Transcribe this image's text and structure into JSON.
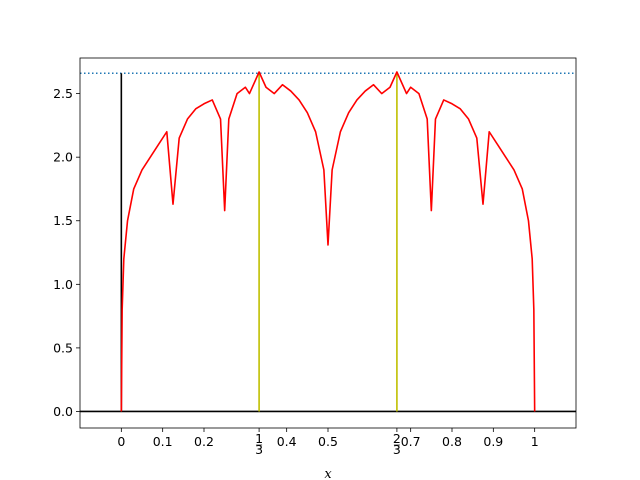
{
  "chart_data": {
    "type": "line",
    "title": "",
    "xlabel": "x",
    "ylabel": "",
    "xlim": [
      -0.1,
      1.1
    ],
    "ylim": [
      -0.13,
      2.78
    ],
    "grid": false,
    "legend": "none",
    "x_ticks": [
      {
        "value": 0,
        "label": "0"
      },
      {
        "value": 0.1,
        "label": "0.1"
      },
      {
        "value": 0.2,
        "label": "0.2"
      },
      {
        "value": 0.3333,
        "label": "1/3",
        "num": "1",
        "den": "3"
      },
      {
        "value": 0.4,
        "label": "0.4"
      },
      {
        "value": 0.5,
        "label": "0.5"
      },
      {
        "value": 0.6667,
        "label": "2/3",
        "num": "2",
        "den": "3"
      },
      {
        "value": 0.7,
        "label": "0.7"
      },
      {
        "value": 0.8,
        "label": "0.8"
      },
      {
        "value": 0.9,
        "label": "0.9"
      },
      {
        "value": 1,
        "label": "1"
      }
    ],
    "y_ticks": [
      {
        "value": 0.0,
        "label": "0.0"
      },
      {
        "value": 0.5,
        "label": "0.5"
      },
      {
        "value": 1.0,
        "label": "1.0"
      },
      {
        "value": 1.5,
        "label": "1.5"
      },
      {
        "value": 2.0,
        "label": "2.0"
      },
      {
        "value": 2.5,
        "label": "2.5"
      }
    ],
    "series": [
      {
        "color": "#ff0000",
        "x": [
          0,
          0.002,
          0.006,
          0.015,
          0.03,
          0.05,
          0.07,
          0.09,
          0.11,
          0.125,
          0.14,
          0.16,
          0.18,
          0.2,
          0.22,
          0.24,
          0.25,
          0.26,
          0.28,
          0.3,
          0.31,
          0.3333,
          0.35,
          0.37,
          0.39,
          0.41,
          0.43,
          0.45,
          0.47,
          0.49,
          0.5,
          0.51,
          0.53,
          0.55,
          0.57,
          0.59,
          0.61,
          0.63,
          0.65,
          0.6667,
          0.69,
          0.7,
          0.72,
          0.74,
          0.75,
          0.76,
          0.78,
          0.8,
          0.82,
          0.84,
          0.86,
          0.875,
          0.89,
          0.91,
          0.93,
          0.95,
          0.97,
          0.985,
          0.994,
          0.998,
          1
        ],
        "y": [
          0,
          0.8,
          1.2,
          1.5,
          1.75,
          1.9,
          2.0,
          2.1,
          2.2,
          1.63,
          2.15,
          2.3,
          2.38,
          2.42,
          2.45,
          2.3,
          1.58,
          2.3,
          2.5,
          2.55,
          2.5,
          2.67,
          2.55,
          2.5,
          2.57,
          2.52,
          2.45,
          2.35,
          2.2,
          1.9,
          1.31,
          1.9,
          2.2,
          2.35,
          2.45,
          2.52,
          2.57,
          2.5,
          2.55,
          2.67,
          2.5,
          2.55,
          2.5,
          2.3,
          1.58,
          2.3,
          2.45,
          2.42,
          2.38,
          2.3,
          2.15,
          1.63,
          2.2,
          2.1,
          2.0,
          1.9,
          1.75,
          1.5,
          1.2,
          0.8,
          0
        ]
      }
    ],
    "reference_lines": [
      {
        "kind": "horizontal",
        "y": 2.66,
        "style": "dotted",
        "color": "#1f77b4"
      },
      {
        "kind": "horizontal",
        "y": 0,
        "style": "solid",
        "color": "#000000"
      },
      {
        "kind": "vertical",
        "x": 0,
        "y_top": 2.66,
        "color": "#000000"
      },
      {
        "kind": "vertical",
        "x": 0.3333,
        "y_top": 2.66,
        "color": "#bfbf00"
      },
      {
        "kind": "vertical",
        "x": 0.6667,
        "y_top": 2.66,
        "color": "#bfbf00"
      }
    ]
  }
}
